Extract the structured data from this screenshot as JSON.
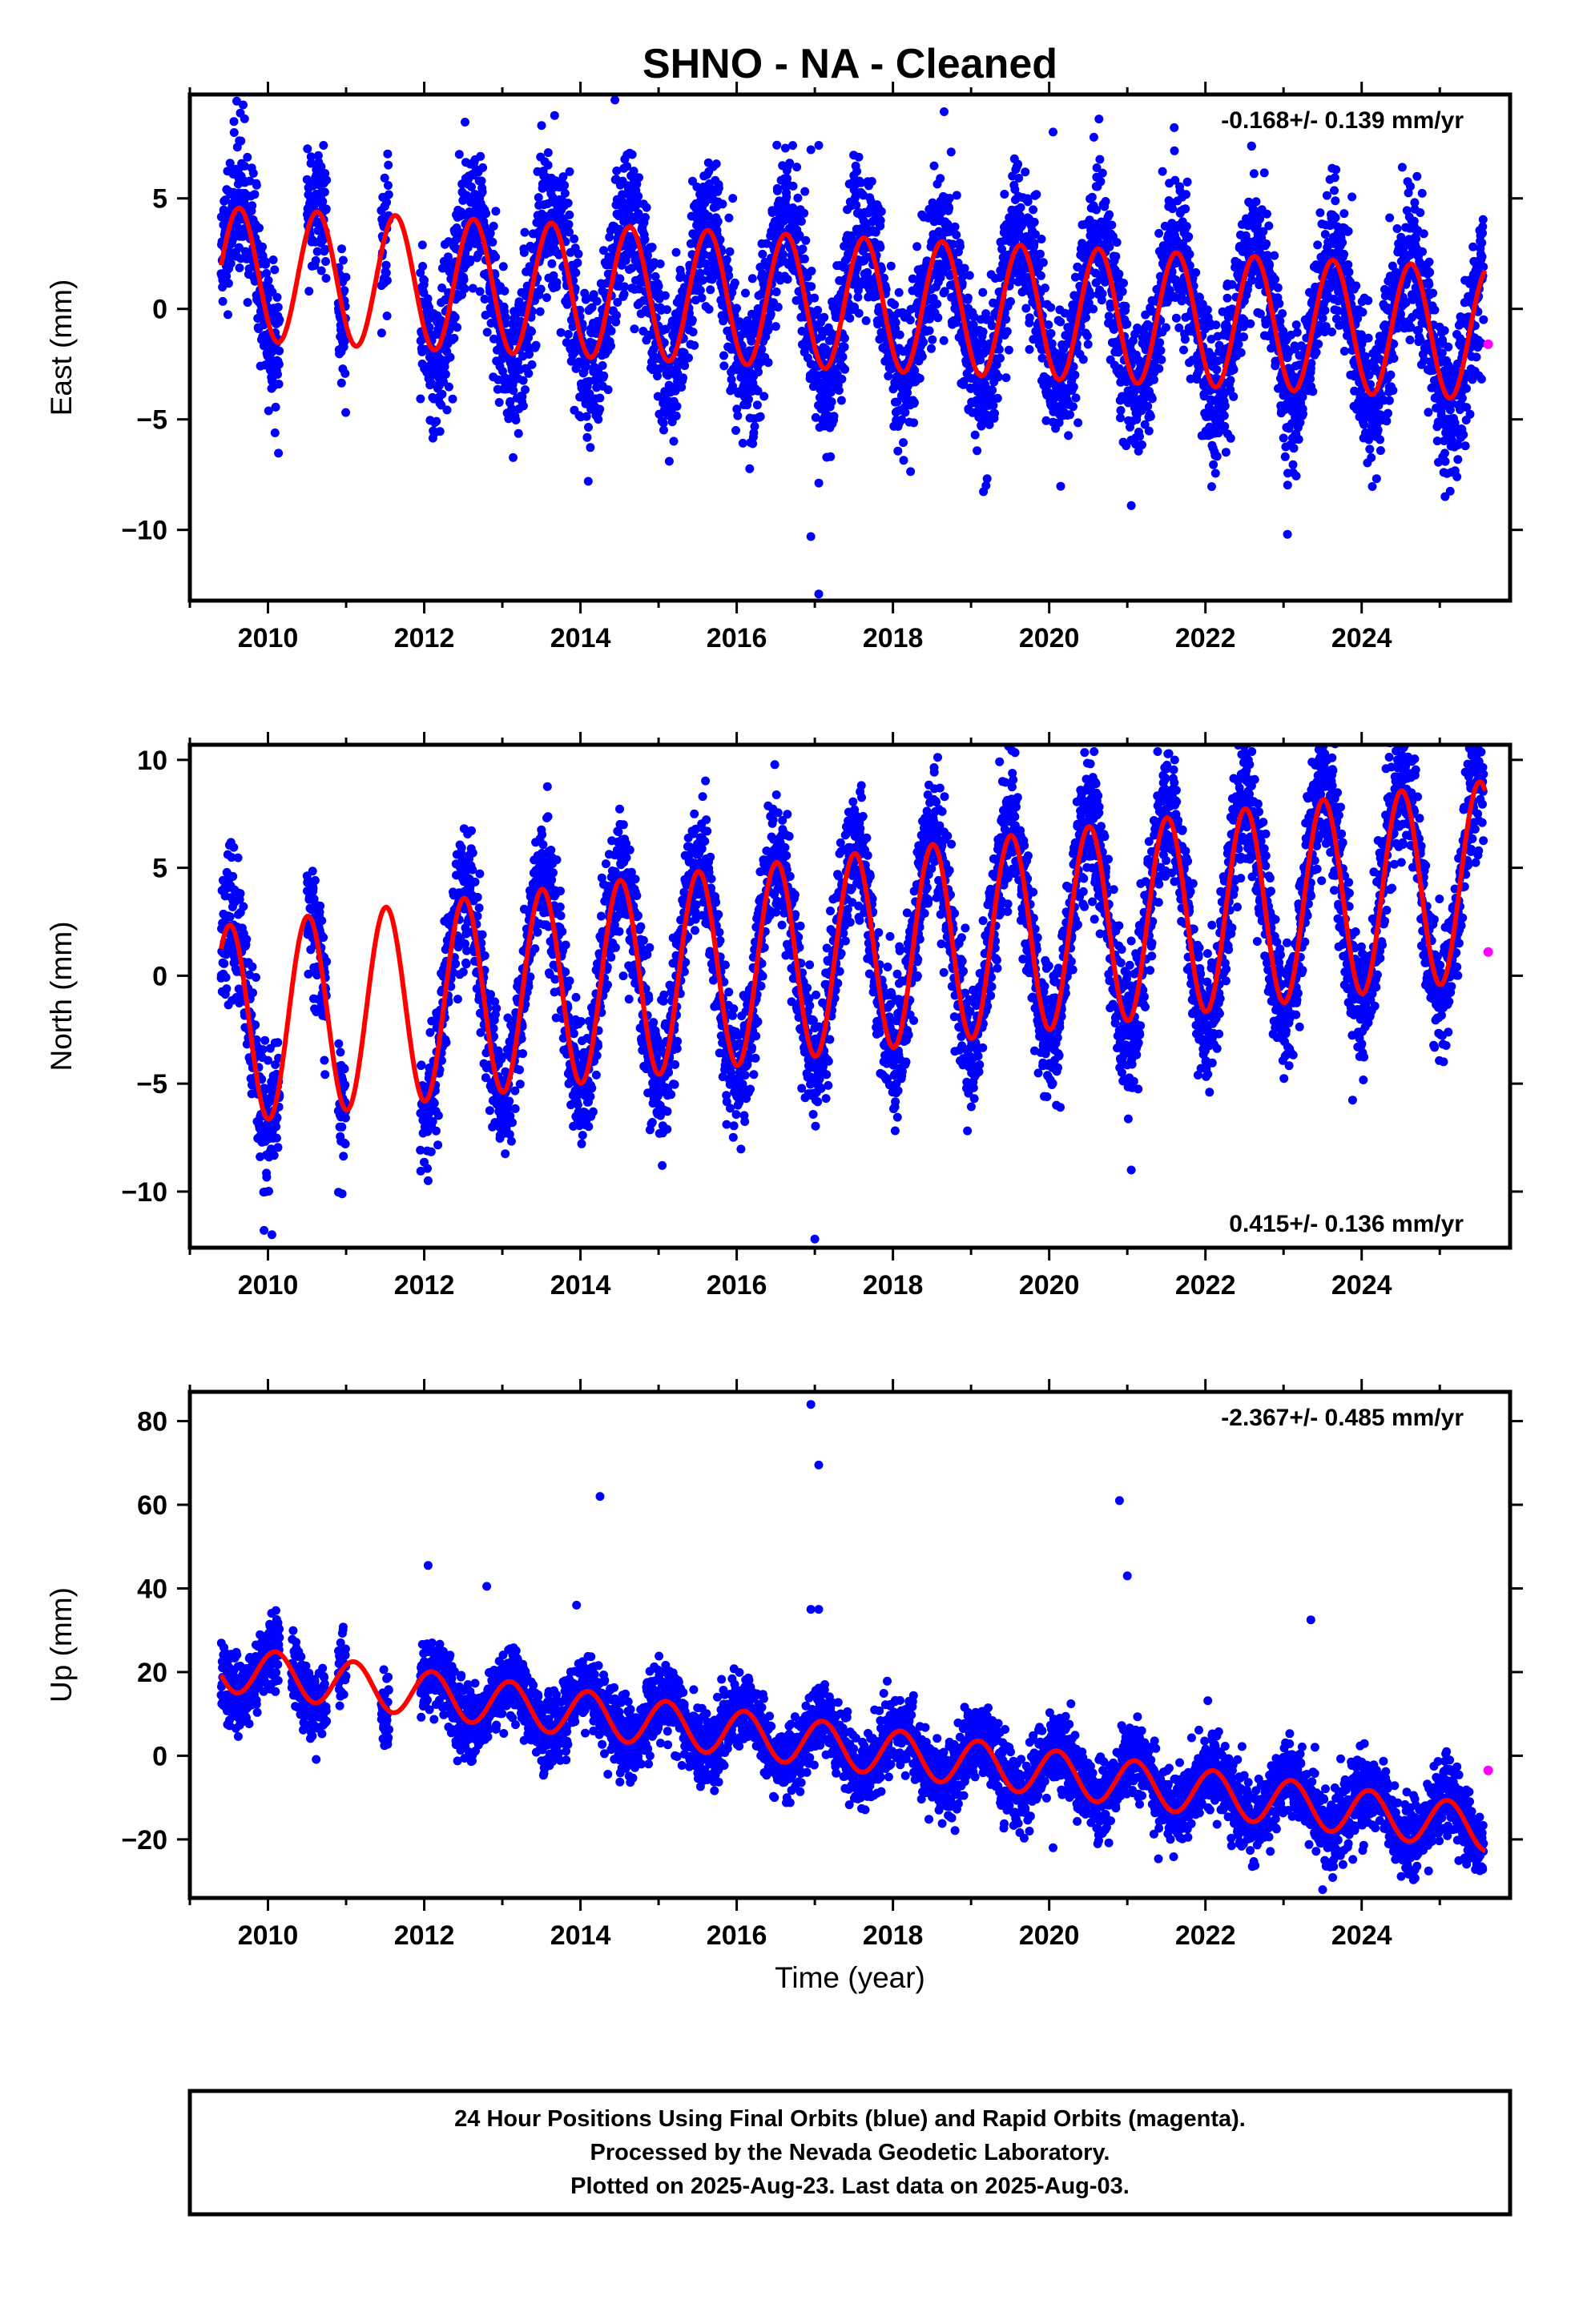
{
  "title": "SHNO  - NA - Cleaned",
  "colors": {
    "final": "#0000ff",
    "rapid": "#ff00ff",
    "fit": "#ff0000"
  },
  "chart_data": [
    {
      "type": "scatter",
      "component": "east",
      "ylabel": "East (mm)",
      "xlabel": "",
      "rate": "-0.168+/- 0.139 mm/yr",
      "rate_position": "top-right",
      "xlim": [
        2009.0,
        2025.9
      ],
      "ylim": [
        -13.2,
        9.7
      ],
      "xticks": [
        "2010",
        "2012",
        "2014",
        "2016",
        "2018",
        "2020",
        "2022",
        "2024"
      ],
      "yticks": [
        "5",
        "0",
        "−5",
        "−10"
      ],
      "ytick_values": [
        5,
        0,
        -5,
        -10
      ],
      "fit": {
        "offset": 1.6,
        "slope": -0.168,
        "amplitude": 3.0,
        "phase_year": 0.38,
        "t0": 2009.4,
        "t1": 2025.58
      },
      "scatter_model": {
        "offset": 1.6,
        "slope": -0.168,
        "amplitude": 3.5,
        "noise": 1.6,
        "seed": 11
      },
      "data_coverage": [
        [
          2009.4,
          2010.15
        ],
        [
          2010.5,
          2010.75
        ],
        [
          2010.9,
          2011.0
        ],
        [
          2011.45,
          2011.55
        ],
        [
          2011.95,
          2025.56
        ]
      ],
      "outliers": [
        [
          2009.6,
          9.4
        ],
        [
          2009.7,
          8.6
        ],
        [
          2016.95,
          7.2
        ],
        [
          2017.05,
          7.4
        ],
        [
          2016.95,
          -10.3
        ],
        [
          2017.05,
          -12.9
        ],
        [
          2020.05,
          8.0
        ],
        [
          2021.6,
          8.2
        ],
        [
          2021.05,
          -8.9
        ],
        [
          2023.05,
          -10.2
        ],
        [
          2014.1,
          -7.8
        ],
        [
          2024.2,
          -5.6
        ]
      ],
      "rapid": [
        [
          2025.62,
          -1.6
        ]
      ]
    },
    {
      "type": "scatter",
      "component": "north",
      "ylabel": "North (mm)",
      "xlabel": "",
      "rate": "0.415+/- 0.136 mm/yr",
      "rate_position": "bottom-right",
      "xlim": [
        2009.0,
        2025.9
      ],
      "ylim": [
        -12.6,
        10.7
      ],
      "xticks": [
        "2010",
        "2012",
        "2014",
        "2016",
        "2018",
        "2020",
        "2022",
        "2024"
      ],
      "yticks": [
        "10",
        "5",
        "0",
        "−5",
        "−10"
      ],
      "ytick_values": [
        10,
        5,
        0,
        -5,
        -10
      ],
      "fit": {
        "offset": -2.3,
        "slope": 0.415,
        "amplitude": 4.6,
        "phase_year": 0.26,
        "t0": 2009.4,
        "t1": 2025.58
      },
      "scatter_model": {
        "offset": -2.3,
        "slope": 0.415,
        "amplitude": 5.0,
        "noise": 1.5,
        "seed": 23
      },
      "data_coverage": [
        [
          2009.4,
          2010.15
        ],
        [
          2010.5,
          2010.75
        ],
        [
          2010.9,
          2011.0
        ],
        [
          2011.95,
          2025.56
        ]
      ],
      "outliers": [
        [
          2009.95,
          -11.8
        ],
        [
          2010.05,
          -12.0
        ],
        [
          2021.05,
          -9.0
        ],
        [
          2017.0,
          -12.2
        ],
        [
          2012.05,
          -9.5
        ],
        [
          2022.5,
          10.3
        ],
        [
          2022.55,
          10.0
        ]
      ],
      "rapid": [
        [
          2025.62,
          1.1
        ]
      ]
    },
    {
      "type": "scatter",
      "component": "up",
      "ylabel": "Up (mm)",
      "xlabel": "Time (year)",
      "rate": "-2.367+/- 0.485 mm/yr",
      "rate_position": "top-right",
      "xlim": [
        2009.0,
        2025.9
      ],
      "ylim": [
        -34,
        87
      ],
      "xticks": [
        "2010",
        "2012",
        "2014",
        "2016",
        "2018",
        "2020",
        "2022",
        "2024"
      ],
      "yticks": [
        "80",
        "60",
        "40",
        "20",
        "0",
        "−20"
      ],
      "ytick_values": [
        80,
        60,
        40,
        20,
        0,
        -20
      ],
      "fit": {
        "offset": 21.0,
        "slope": -2.367,
        "amplitude": 5.5,
        "phase_year": 0.85,
        "t0": 2009.4,
        "t1": 2025.58
      },
      "scatter_model": {
        "offset": 21.0,
        "slope": -2.367,
        "amplitude": 6.0,
        "noise": 4.2,
        "seed": 37
      },
      "data_coverage": [
        [
          2009.4,
          2010.15
        ],
        [
          2010.3,
          2010.75
        ],
        [
          2010.9,
          2011.0
        ],
        [
          2011.45,
          2011.55
        ],
        [
          2011.95,
          2025.56
        ]
      ],
      "outliers": [
        [
          2016.95,
          84.0
        ],
        [
          2017.05,
          69.5
        ],
        [
          2014.25,
          62.0
        ],
        [
          2020.9,
          61.0
        ],
        [
          2021.0,
          43.0
        ],
        [
          2012.05,
          45.5
        ],
        [
          2013.95,
          36.0
        ],
        [
          2012.8,
          40.5
        ],
        [
          2016.95,
          35.0
        ],
        [
          2017.05,
          35.0
        ],
        [
          2023.35,
          32.5
        ],
        [
          2023.5,
          -32.0
        ],
        [
          2020.05,
          -22.0
        ]
      ],
      "rapid": [
        [
          2025.62,
          -3.5
        ]
      ]
    }
  ],
  "footer": {
    "line1": "24 Hour Positions Using Final Orbits (blue) and Rapid Orbits (magenta).",
    "line2": "Processed by the Nevada Geodetic Laboratory.",
    "line3": "Plotted on 2025-Aug-23. Last data on 2025-Aug-03."
  }
}
